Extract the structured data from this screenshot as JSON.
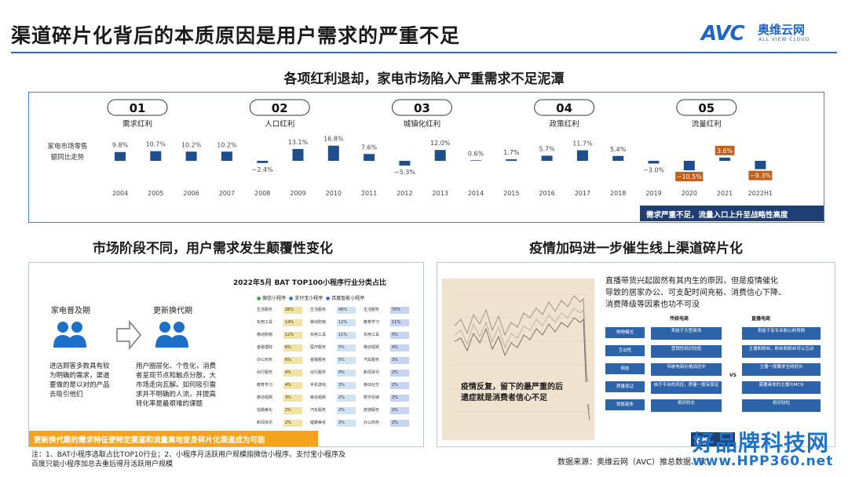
{
  "header": {
    "title": "渠道碎片化背后的本质原因是用户需求的严重不足",
    "logo_mark": "AVC",
    "logo_cn": "奥维云网",
    "logo_en": "ALL VIEW CLOUD"
  },
  "section1": {
    "title": "各项红利退却，家电市场陷入严重需求不足泥潭",
    "y_label_line1": "家电市场零售",
    "y_label_line2": "额同比走势",
    "banner": "需求严重不足，流量入口上升至战略性高度"
  },
  "chart_data": {
    "type": "bar",
    "ylabel": "家电市场零售额同比走势",
    "categories": [
      "2004",
      "2005",
      "2006",
      "2007",
      "2008",
      "2009",
      "2010",
      "2011",
      "2012",
      "2013",
      "2014",
      "2015",
      "2016",
      "2017",
      "2018",
      "2019",
      "2020",
      "2021",
      "2022H1"
    ],
    "values": [
      9.8,
      10.7,
      10.2,
      10.2,
      -2.4,
      13.1,
      16.8,
      7.6,
      -5.3,
      12.0,
      0.6,
      1.7,
      5.7,
      11.7,
      5.4,
      -3.0,
      -10.5,
      3.6,
      -9.3
    ],
    "value_labels": [
      "9.8%",
      "10.7%",
      "10.2%",
      "10.2%",
      "−2.4%",
      "13.1%",
      "16.8%",
      "7.6%",
      "−5.3%",
      "12.0%",
      "0.6%",
      "1.7%",
      "5.7%",
      "11.7%",
      "5.4%",
      "−3.0%",
      "−10.5%",
      "3.6%",
      "−9.3%"
    ],
    "highlight_indices": [
      16,
      17,
      18
    ],
    "bar_color": "#1f4e8c",
    "highlight_label_color": "#c0601a",
    "milestones": [
      {
        "num": "01",
        "label": "需求红利",
        "category_index": 0
      },
      {
        "num": "02",
        "label": "人口红利",
        "category_index": 4
      },
      {
        "num": "03",
        "label": "城镇化红利",
        "category_index": 8
      },
      {
        "num": "04",
        "label": "政策红利",
        "category_index": 12
      },
      {
        "num": "05",
        "label": "流量红利",
        "category_index": 16
      }
    ]
  },
  "section2": {
    "title": "市场阶段不同，用户需求发生颠覆性变化",
    "stage1_label": "家电普及期",
    "stage1_desc": [
      "进店顾客多数具有较",
      "为明确的需求，渠道",
      "要做的是以对的产品",
      "去吸引他们"
    ],
    "stage2_label": "更新换代期",
    "stage2_desc": [
      "用户圈层化、个性化，消费",
      "者呈现节点和触点分散，大",
      "市场走向瓦解。如何吸引需",
      "求并不明确的人流，并提高",
      "转化率是最艰难的课题"
    ],
    "table_title": "2022年5月 BAT TOP100小程序行业分类占比",
    "legend": [
      "微信小程序",
      "支付宝小程序",
      "百度智能小程序"
    ],
    "rows": [
      [
        "生活服务",
        "26%",
        "生活服务",
        "46%",
        "生活服务",
        "70%"
      ],
      [
        "实用工具",
        "14%",
        "移动购物",
        "12%",
        "教育学习",
        "11%"
      ],
      [
        "移动购物",
        "12%",
        "实用工具",
        "11%",
        "实用工具",
        "5%"
      ],
      [
        "金融理财",
        "6%",
        "医疗服务",
        "5%",
        "移动视频",
        "4%"
      ],
      [
        "办公商务",
        "6%",
        "金融服务",
        "5%",
        "汽车服务",
        "3%"
      ],
      [
        "出行服务",
        "4%",
        "出行服务",
        "4%",
        "新闻资讯",
        "2%"
      ],
      [
        "教育学习",
        "4%",
        "手机游戏",
        "3%",
        "移动社交",
        "2%"
      ],
      [
        "移动视频",
        "3%",
        "移动视频",
        "2%",
        "数字阅读",
        "2%"
      ],
      [
        "拍摄美化",
        "2%",
        "汽车服务",
        "2%",
        "旅游服务",
        "2%"
      ],
      [
        "新闻资讯",
        "2%",
        "健康美妆",
        "2%",
        "办公商务",
        "2%"
      ]
    ],
    "banner": "更新换代期的需求特征使特定渠道和流量高地变身碎片化渠道成为可能"
  },
  "section3": {
    "title": "疫情加码进一步催生线上渠道碎片化",
    "desc_line1": "直播带货兴起固然有其内生的原因，但是疫情催化",
    "desc_line2": "导致的居家办公、可支配时间充裕、消费信心下降、",
    "desc_line3": "消费降级等因素也功不可没",
    "chart_callout_line1": "疫情反复，留下的最严重的后",
    "chart_callout_line2": "遗症就是消费者信心不足",
    "col_a": "传统电商",
    "col_b": "直播电商",
    "vs": "VS",
    "row_labels": [
      "购物模式",
      "互动性",
      "佣金",
      "质量保证",
      "销售链条"
    ],
    "col_a_cells": [
      "卖给于大型商场",
      "营销性相对较低",
      "传统电商价格战还中",
      "由于平台的风控，质量一般有保证",
      "相对较长"
    ],
    "col_b_cells": [
      "卖给于有专业耐心的导购",
      "主播和粉丝，粉丝和粉丝可以互动",
      "主播一般要求全网低价",
      "需要具体的主播与MCN",
      "相对较短"
    ],
    "banner_clip": "疫情"
  },
  "footer": {
    "note_line1": "注：1、BAT小程序选取占比TOP10行业；2、小程序月活跃用户规模指微信小程序、支付宝小程序及",
    "note_line2": "百度只能小程序加总去重后得月活跃用户规模",
    "source": "数据来源：奥维云网（AVC）推总数据、砍"
  },
  "watermark": {
    "text": "好品牌科技网",
    "url": "www.HPP360.net"
  }
}
